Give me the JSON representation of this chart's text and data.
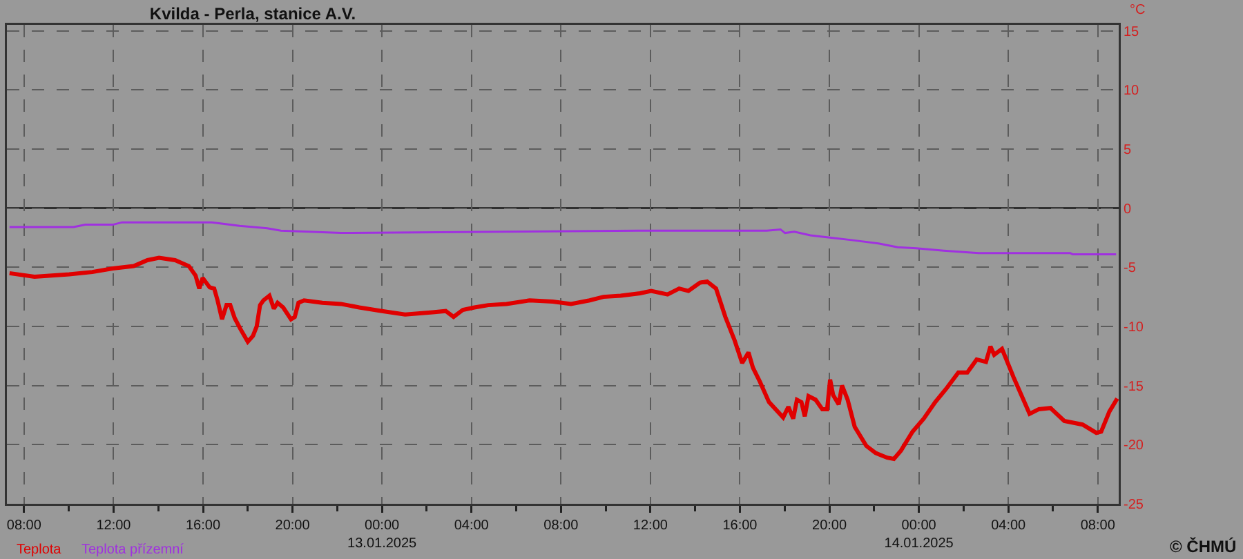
{
  "chart_data": {
    "type": "line",
    "title": "Kvilda - Perla, stanice A.V.",
    "ylabel": "°C",
    "annotations": [
      "© ČHMÚ"
    ],
    "xlim": [
      "2025-01-12T07:14",
      "2025-01-14T08:56"
    ],
    "ylim": [
      -25,
      15.5
    ],
    "yticks": [
      -25,
      -20,
      -15,
      -10,
      -5,
      0,
      5,
      10,
      15
    ],
    "xticks": [
      {
        "value": "2025-01-12T08:00",
        "label": "08:00"
      },
      {
        "value": "2025-01-12T10:00",
        "label": null
      },
      {
        "value": "2025-01-12T12:00",
        "label": "12:00"
      },
      {
        "value": "2025-01-12T14:00",
        "label": null
      },
      {
        "value": "2025-01-12T16:00",
        "label": "16:00"
      },
      {
        "value": "2025-01-12T18:00",
        "label": null
      },
      {
        "value": "2025-01-12T20:00",
        "label": "20:00"
      },
      {
        "value": "2025-01-12T22:00",
        "label": null
      },
      {
        "value": "2025-01-13T00:00",
        "label": "00:00\n13.01.2025"
      },
      {
        "value": "2025-01-13T02:00",
        "label": null
      },
      {
        "value": "2025-01-13T04:00",
        "label": "04:00"
      },
      {
        "value": "2025-01-13T06:00",
        "label": null
      },
      {
        "value": "2025-01-13T08:00",
        "label": "08:00"
      },
      {
        "value": "2025-01-13T10:00",
        "label": null
      },
      {
        "value": "2025-01-13T12:00",
        "label": "12:00"
      },
      {
        "value": "2025-01-13T14:00",
        "label": null
      },
      {
        "value": "2025-01-13T16:00",
        "label": "16:00"
      },
      {
        "value": "2025-01-13T18:00",
        "label": null
      },
      {
        "value": "2025-01-13T20:00",
        "label": "20:00"
      },
      {
        "value": "2025-01-13T22:00",
        "label": null
      },
      {
        "value": "2025-01-14T00:00",
        "label": "00:00\n14.01.2025"
      },
      {
        "value": "2025-01-14T02:00",
        "label": null
      },
      {
        "value": "2025-01-14T04:00",
        "label": "04:00"
      },
      {
        "value": "2025-01-14T06:00",
        "label": null
      },
      {
        "value": "2025-01-14T08:00",
        "label": "08:00"
      }
    ],
    "grid": true,
    "legend": "bottom left",
    "marker": "none",
    "line_style": "solid",
    "ref_lines": [
      {
        "axis": "y",
        "value": 0,
        "color": "#303030"
      }
    ],
    "series": [
      {
        "name": "Teplota",
        "color": "#e00000",
        "x": [
          "2025-01-12T07:21",
          "2025-01-12T08:28",
          "2025-01-12T10:01",
          "2025-01-12T11:03",
          "2025-01-12T11:58",
          "2025-01-12T12:54",
          "2025-01-12T13:31",
          "2025-01-12T14:02",
          "2025-01-12T14:45",
          "2025-01-12T15:22",
          "2025-01-12T15:40",
          "2025-01-12T15:50",
          "2025-01-12T15:59",
          "2025-01-12T16:18",
          "2025-01-12T16:30",
          "2025-01-12T16:39",
          "2025-01-12T16:51",
          "2025-01-12T17:03",
          "2025-01-12T17:13",
          "2025-01-12T17:25",
          "2025-01-12T17:40",
          "2025-01-12T18:00",
          "2025-01-12T18:14",
          "2025-01-12T18:24",
          "2025-01-12T18:33",
          "2025-01-12T18:42",
          "2025-01-12T18:58",
          "2025-01-12T19:10",
          "2025-01-12T19:20",
          "2025-01-12T19:35",
          "2025-01-12T19:56",
          "2025-01-12T20:06",
          "2025-01-12T20:16",
          "2025-01-12T20:31",
          "2025-01-12T21:20",
          "2025-01-12T22:10",
          "2025-01-12T22:59",
          "2025-01-13T00:00",
          "2025-01-13T01:02",
          "2025-01-13T02:16",
          "2025-01-13T02:51",
          "2025-01-13T03:12",
          "2025-01-13T03:37",
          "2025-01-13T04:08",
          "2025-01-13T04:45",
          "2025-01-13T05:34",
          "2025-01-13T06:36",
          "2025-01-13T07:38",
          "2025-01-13T08:27",
          "2025-01-13T09:17",
          "2025-01-13T09:54",
          "2025-01-13T10:40",
          "2025-01-13T11:32",
          "2025-01-13T12:02",
          "2025-01-13T12:46",
          "2025-01-13T13:17",
          "2025-01-13T13:42",
          "2025-01-13T14:13",
          "2025-01-13T14:32",
          "2025-01-13T14:56",
          "2025-01-13T15:21",
          "2025-01-13T15:46",
          "2025-01-13T16:06",
          "2025-01-13T16:23",
          "2025-01-13T16:35",
          "2025-01-13T16:54",
          "2025-01-13T17:18",
          "2025-01-13T17:56",
          "2025-01-13T18:10",
          "2025-01-13T18:23",
          "2025-01-13T18:33",
          "2025-01-13T18:45",
          "2025-01-13T18:54",
          "2025-01-13T19:04",
          "2025-01-13T19:23",
          "2025-01-13T19:41",
          "2025-01-13T19:54",
          "2025-01-13T20:02",
          "2025-01-13T20:10",
          "2025-01-13T20:25",
          "2025-01-13T20:34",
          "2025-01-13T20:49",
          "2025-01-13T21:08",
          "2025-01-13T21:39",
          "2025-01-13T22:04",
          "2025-01-13T22:35",
          "2025-01-13T22:53",
          "2025-01-13T23:12",
          "2025-01-13T23:43",
          "2025-01-14T00:13",
          "2025-01-14T00:44",
          "2025-01-14T01:15",
          "2025-01-14T01:46",
          "2025-01-14T02:10",
          "2025-01-14T02:35",
          "2025-01-14T03:00",
          "2025-01-14T03:12",
          "2025-01-14T03:22",
          "2025-01-14T03:43",
          "2025-01-14T04:14",
          "2025-01-14T04:57",
          "2025-01-14T05:22",
          "2025-01-14T05:53",
          "2025-01-14T06:30",
          "2025-01-14T07:19",
          "2025-01-14T07:56",
          "2025-01-14T08:09",
          "2025-01-14T08:31",
          "2025-01-14T08:52"
        ],
        "values": [
          -5.5,
          -5.8,
          -5.6,
          -5.4,
          -5.1,
          -4.9,
          -4.4,
          -4.2,
          -4.4,
          -4.9,
          -5.7,
          -6.8,
          -5.9,
          -6.7,
          -6.8,
          -7.8,
          -9.4,
          -8.2,
          -8.2,
          -9.3,
          -10.2,
          -11.3,
          -10.8,
          -10.0,
          -8.2,
          -7.8,
          -7.4,
          -8.5,
          -8.0,
          -8.4,
          -9.4,
          -9.2,
          -8.0,
          -7.8,
          -8.0,
          -8.1,
          -8.4,
          -8.7,
          -9.0,
          -8.8,
          -8.7,
          -9.2,
          -8.6,
          -8.4,
          -8.2,
          -8.1,
          -7.8,
          -7.9,
          -8.1,
          -7.8,
          -7.5,
          -7.4,
          -7.2,
          -7.0,
          -7.3,
          -6.8,
          -7.0,
          -6.3,
          -6.2,
          -6.8,
          -9.2,
          -11.2,
          -13.1,
          -12.2,
          -13.5,
          -14.7,
          -16.4,
          -17.7,
          -16.8,
          -17.8,
          -16.2,
          -16.4,
          -17.6,
          -15.9,
          -16.2,
          -17.0,
          -17.0,
          -14.5,
          -15.8,
          -16.6,
          -15.0,
          -16.2,
          -18.5,
          -20.1,
          -20.7,
          -21.1,
          -21.2,
          -20.5,
          -18.9,
          -17.8,
          -16.4,
          -15.2,
          -13.9,
          -13.9,
          -12.8,
          -13.0,
          -11.7,
          -12.4,
          -11.9,
          -14.3,
          -17.4,
          -17.0,
          -16.9,
          -18.0,
          -18.3,
          -19.0,
          -18.9,
          -17.2,
          -16.1
        ]
      },
      {
        "name": "Teplota přízemní",
        "color": "#a030e0",
        "x": [
          "2025-01-12T07:21",
          "2025-01-12T10:13",
          "2025-01-12T10:44",
          "2025-01-12T11:58",
          "2025-01-12T12:23",
          "2025-01-12T13:18",
          "2025-01-12T16:24",
          "2025-01-12T17:38",
          "2025-01-12T18:52",
          "2025-01-12T19:29",
          "2025-01-12T20:56",
          "2025-01-12T22:10",
          "2025-01-13T11:26",
          "2025-01-13T17:12",
          "2025-01-13T17:49",
          "2025-01-13T18:01",
          "2025-01-13T18:26",
          "2025-01-13T19:09",
          "2025-01-13T20:05",
          "2025-01-13T21:00",
          "2025-01-13T22:14",
          "2025-01-13T23:03",
          "2025-01-13T23:53",
          "2025-01-14T01:07",
          "2025-01-14T02:40",
          "2025-01-14T06:46",
          "2025-01-14T06:52",
          "2025-01-14T08:49"
        ],
        "values": [
          -1.6,
          -1.6,
          -1.4,
          -1.4,
          -1.2,
          -1.2,
          -1.2,
          -1.5,
          -1.7,
          -1.9,
          -2.0,
          -2.1,
          -1.9,
          -1.9,
          -1.8,
          -2.1,
          -2.0,
          -2.3,
          -2.5,
          -2.7,
          -3.0,
          -3.3,
          -3.4,
          -3.6,
          -3.8,
          -3.8,
          -3.9,
          -3.9
        ]
      }
    ]
  }
}
